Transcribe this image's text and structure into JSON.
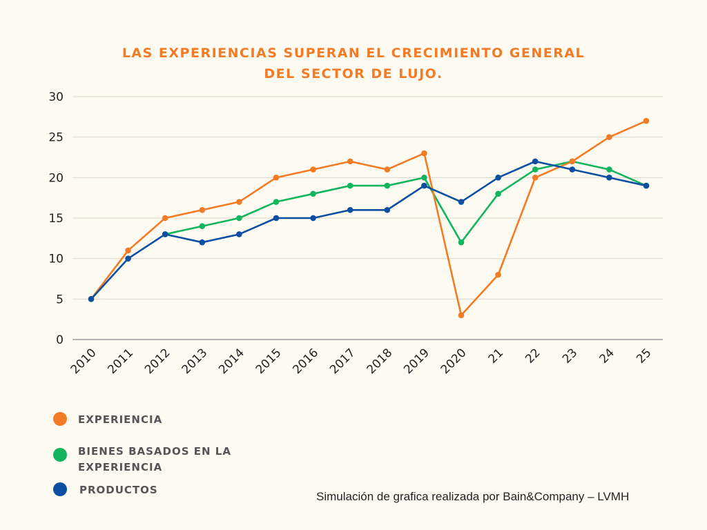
{
  "chart_data": {
    "type": "line",
    "title_lines": [
      "LAS EXPERIENCIAS SUPERAN EL CRECIMIENTO GENERAL",
      "DEL SECTOR DE LUJO."
    ],
    "categories": [
      "2010",
      "2011",
      "2012",
      "2013",
      "2014",
      "2015",
      "2016",
      "2017",
      "2018",
      "2019",
      "2020",
      "21",
      "22",
      "23",
      "24",
      "25"
    ],
    "ylim": [
      0,
      30
    ],
    "yticks": [
      0,
      5,
      10,
      15,
      20,
      25,
      30
    ],
    "grid": true,
    "legend_position": "bottom-left",
    "series": [
      {
        "name": "EXPERIENCIA",
        "color": "#f47b25",
        "values": [
          5,
          11,
          15,
          16,
          17,
          20,
          21,
          22,
          21,
          23,
          3,
          8,
          20,
          22,
          25,
          27
        ]
      },
      {
        "name": "BIENES BASADOS EN LA EXPERIENCIA",
        "color": "#12b55d",
        "values": [
          null,
          null,
          13,
          14,
          15,
          17,
          18,
          19,
          19,
          20,
          12,
          18,
          21,
          22,
          21,
          19
        ]
      },
      {
        "name": "PRODUCTOS",
        "color": "#0b4ea2",
        "values": [
          5,
          10,
          13,
          12,
          13,
          15,
          15,
          16,
          16,
          19,
          17,
          20,
          22,
          21,
          20,
          19
        ]
      }
    ]
  },
  "legend": [
    {
      "label": "EXPERIENCIA",
      "color": "#f47b25"
    },
    {
      "label": "BIENES BASADOS EN LA EXPERIENCIA",
      "color": "#12b55d"
    },
    {
      "label": "PRODUCTOS",
      "color": "#0b4ea2"
    }
  ],
  "source_note": "Simulación de grafica realizada por Bain&Company – LVMH"
}
